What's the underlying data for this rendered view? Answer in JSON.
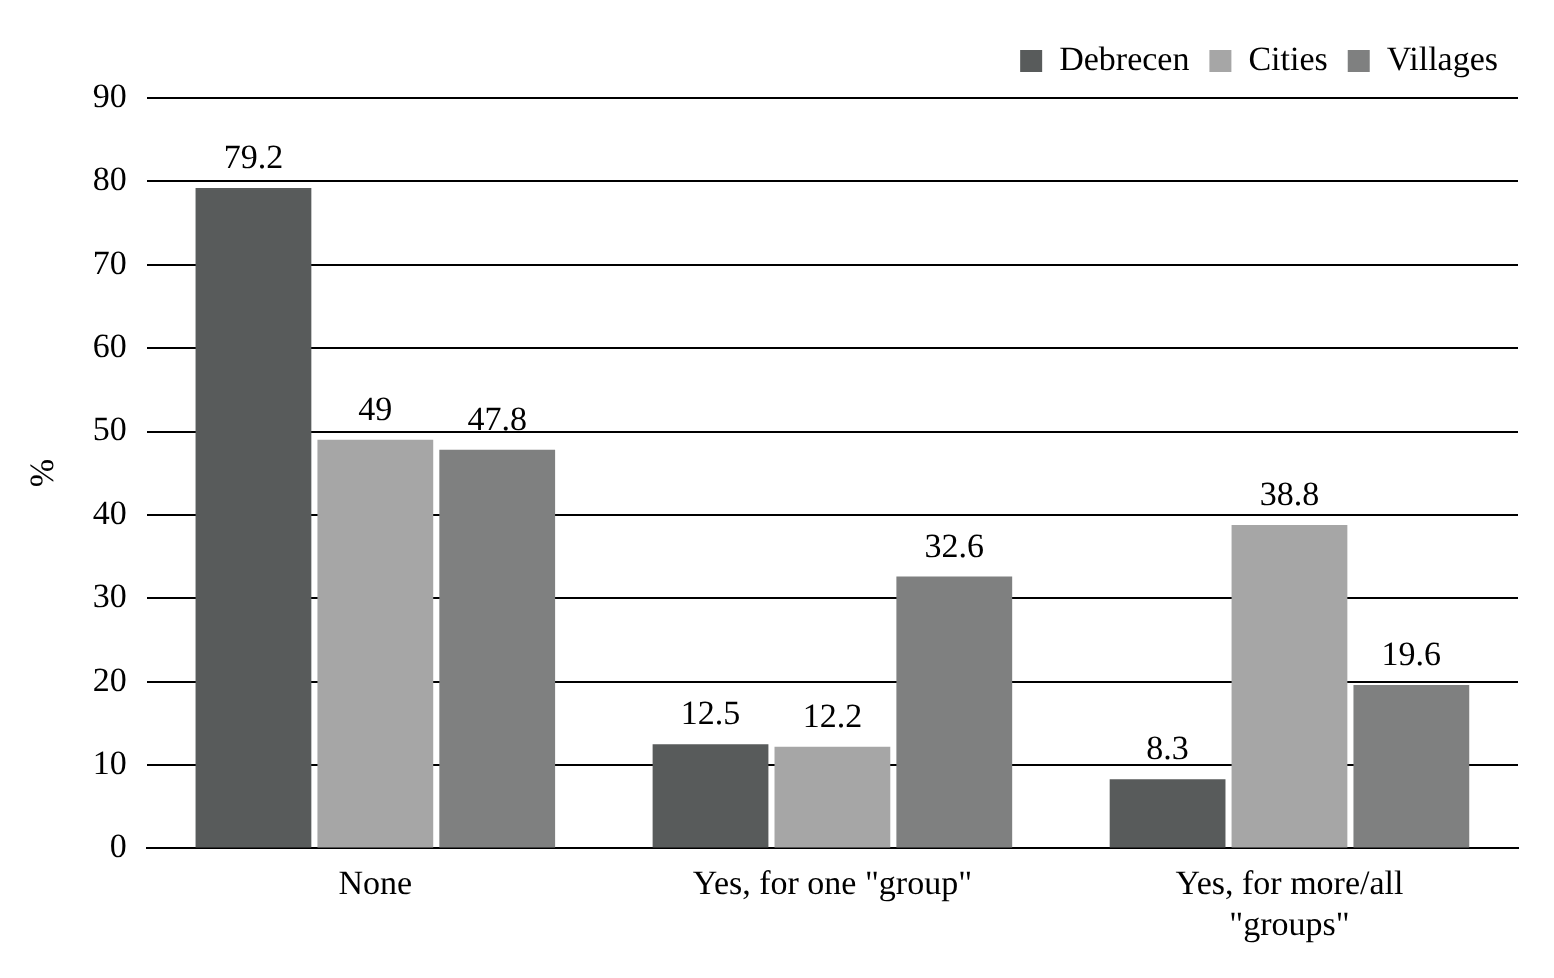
{
  "chart_data": {
    "type": "bar",
    "ylabel": "%",
    "categories": [
      "None",
      "Yes, for one \"group\"",
      "Yes, for more/all \"groups\""
    ],
    "series": [
      {
        "name": "Debrecen",
        "color": "#585b5b",
        "values": [
          79.2,
          12.5,
          8.3
        ]
      },
      {
        "name": "Cities",
        "color": "#a6a6a6",
        "values": [
          49,
          12.2,
          38.8
        ]
      },
      {
        "name": "Villages",
        "color": "#7f8080",
        "values": [
          47.8,
          32.6,
          19.6
        ]
      }
    ],
    "ylim": [
      0,
      90
    ],
    "yticks": [
      0,
      10,
      20,
      30,
      40,
      50,
      60,
      70,
      80,
      90
    ],
    "grid": "y",
    "legend": "top right",
    "data_labels": true
  }
}
